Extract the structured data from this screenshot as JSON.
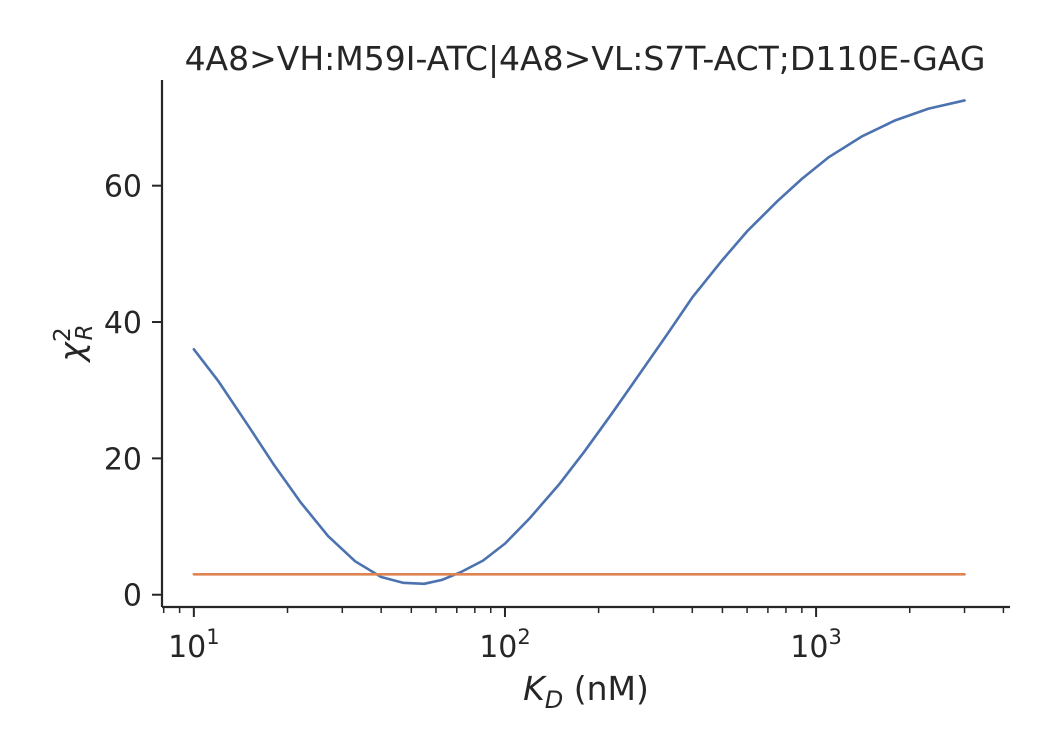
{
  "chart_data": {
    "type": "line",
    "title": "4A8>VH:M59I-ATC|4A8>VL:S7T-ACT;D110E-GAG",
    "xlabel": {
      "var": "K",
      "sub": "D",
      "unit": " (nM)"
    },
    "ylabel": {
      "var": "χ",
      "sup": "2",
      "sub": "R"
    },
    "x_scale": "log",
    "xlim": [
      7.9,
      4200
    ],
    "ylim": [
      -1.8,
      75.5
    ],
    "x_ticks": [
      {
        "value": 10,
        "base": "10",
        "exp": "1"
      },
      {
        "value": 100,
        "base": "10",
        "exp": "2"
      },
      {
        "value": 1000,
        "base": "10",
        "exp": "3"
      }
    ],
    "y_ticks": [
      0,
      20,
      40,
      60
    ],
    "grid": false,
    "series": [
      {
        "color": "#4c72b0",
        "x": [
          10,
          12,
          15,
          18,
          22,
          27,
          33,
          40,
          47,
          55,
          63,
          72,
          85,
          100,
          120,
          150,
          180,
          220,
          270,
          330,
          400,
          500,
          600,
          750,
          900,
          1100,
          1400,
          1800,
          2300,
          3000
        ],
        "y": [
          36.0,
          31.3,
          24.7,
          19.2,
          13.6,
          8.6,
          4.9,
          2.6,
          1.75,
          1.6,
          2.2,
          3.3,
          5.0,
          7.5,
          11.2,
          16.3,
          21.0,
          26.5,
          32.3,
          38.0,
          43.6,
          49.1,
          53.3,
          57.7,
          61.0,
          64.2,
          67.2,
          69.6,
          71.3,
          72.5
        ]
      },
      {
        "color": "#dd8452",
        "x": [
          10,
          3000
        ],
        "y": [
          3.0,
          3.0
        ]
      }
    ]
  }
}
